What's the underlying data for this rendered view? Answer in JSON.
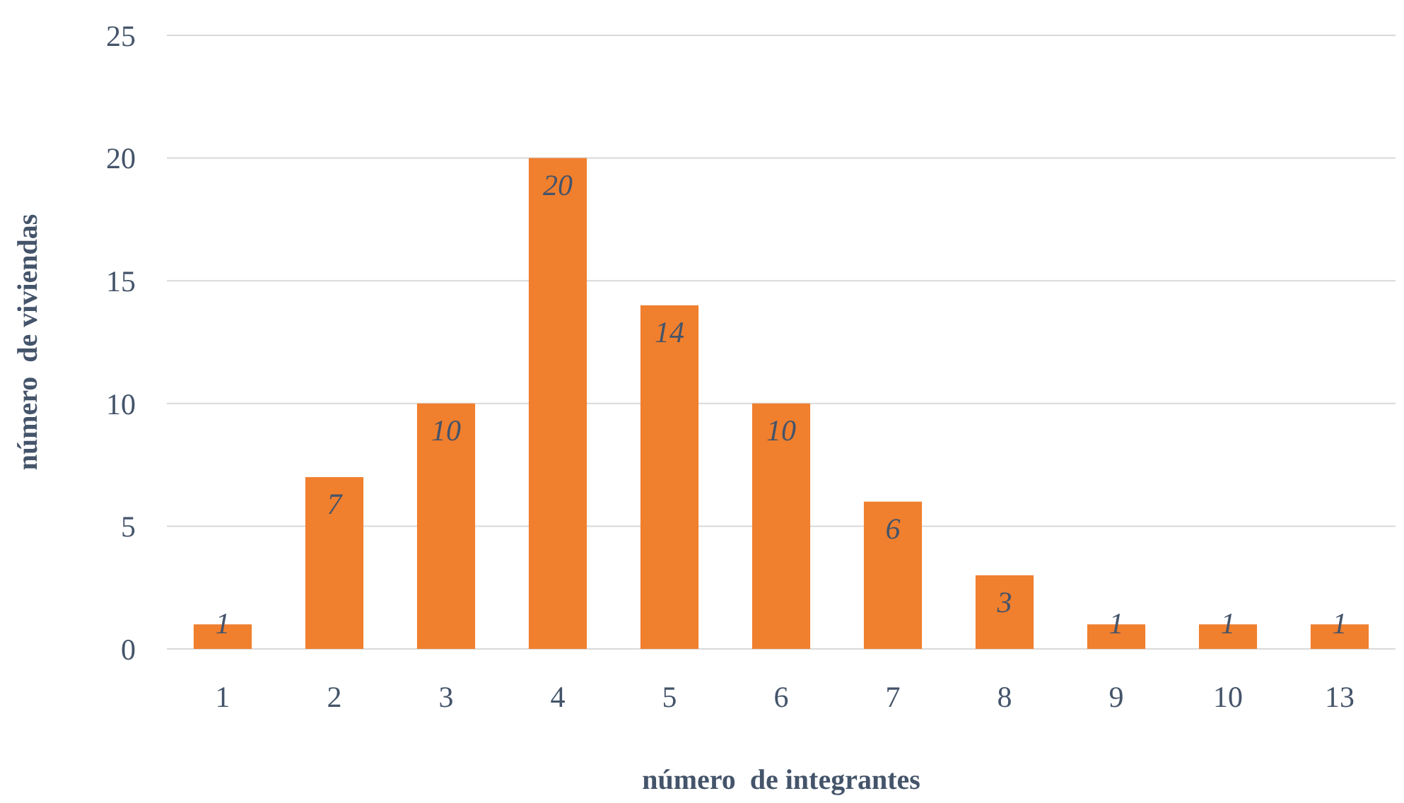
{
  "chart_data": {
    "type": "bar",
    "xlabel": "número  de integrantes",
    "ylabel": "número  de viviendas",
    "categories": [
      "1",
      "2",
      "3",
      "4",
      "5",
      "6",
      "7",
      "8",
      "9",
      "10",
      "13"
    ],
    "values": [
      1,
      7,
      10,
      20,
      14,
      10,
      6,
      3,
      1,
      1,
      1
    ],
    "color": "#f07f2e",
    "ylim": [
      0,
      25
    ],
    "yticks": [
      0,
      5,
      10,
      15,
      20,
      25
    ],
    "grid": "y",
    "data_labels": true
  }
}
